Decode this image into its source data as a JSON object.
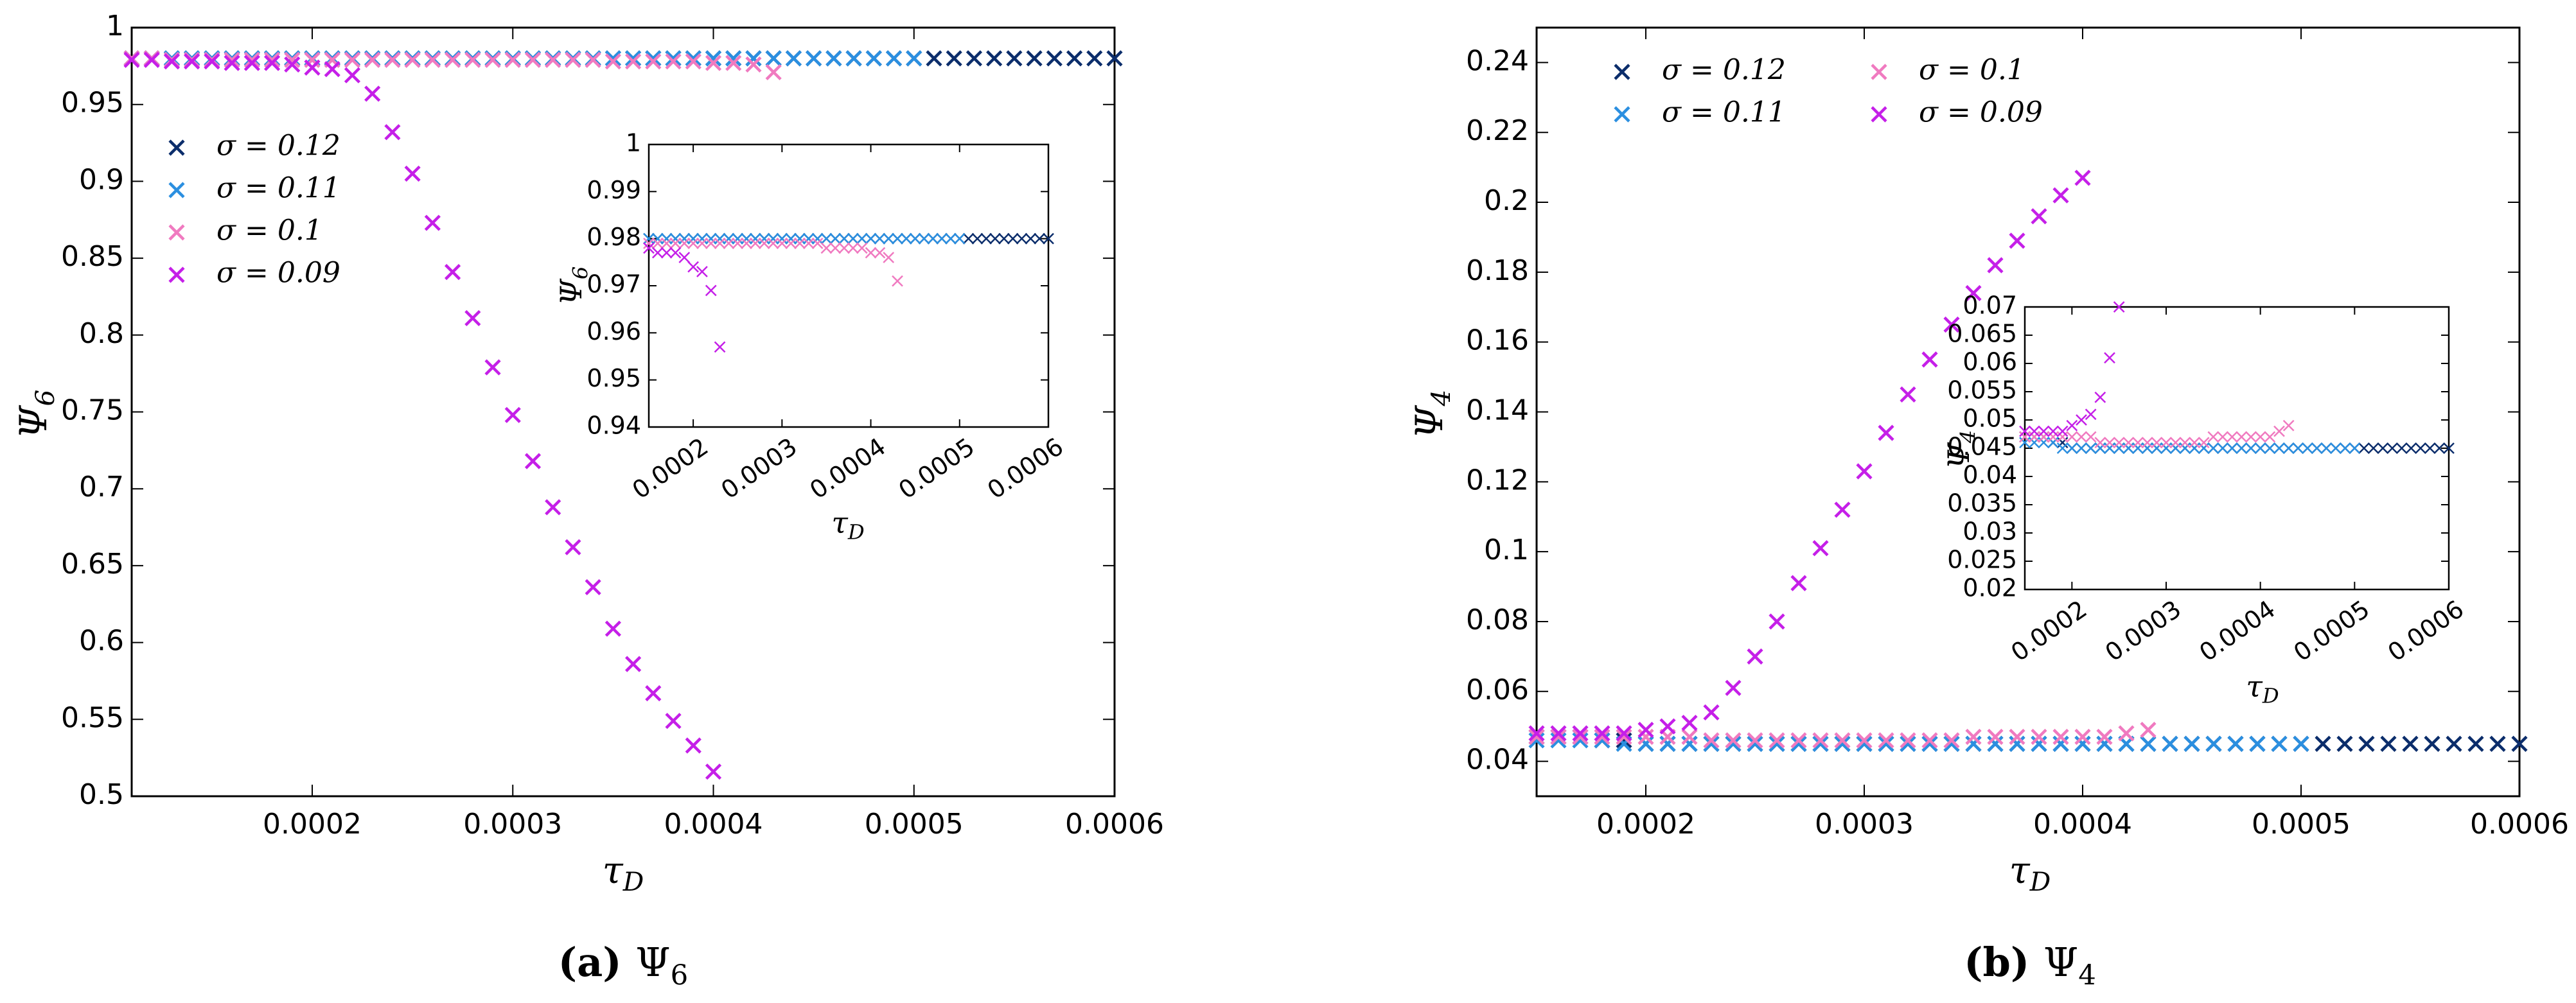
{
  "captions": [
    "(a) Ψ6",
    "(b) Ψ4"
  ],
  "chart_data": [
    {
      "type": "scatter",
      "panel": "a",
      "caption": "(a) Ψ6",
      "xlabel": "τD",
      "ylabel": "Ψ6",
      "xlim": [
        0.00011,
        0.0006
      ],
      "ylim": [
        0.5,
        1
      ],
      "xticks": [
        "0.0002",
        "0.0003",
        "0.0004",
        "0.0005",
        "0.0006"
      ],
      "yticks": [
        "0.5",
        "0.55",
        "0.6",
        "0.65",
        "0.7",
        "0.75",
        "0.8",
        "0.85",
        "0.9",
        "0.95",
        "1"
      ],
      "legend_position": "left",
      "grid": false,
      "series": [
        {
          "name": "σ = 0.12",
          "color": "#0b2d6b",
          "x_start": 0.00011,
          "x_step": 1e-05,
          "count": 50,
          "y_constant": 0.98
        },
        {
          "name": "σ = 0.11",
          "color": "#2b8fe0",
          "x_start": 0.00011,
          "x_step": 1e-05,
          "count": 40,
          "y_constant": 0.98
        },
        {
          "name": "σ = 0.1",
          "color": "#f07ac0",
          "x_start": 0.00011,
          "x_step": 1e-05,
          "count": 33,
          "y": [
            0.98,
            0.98,
            0.979,
            0.979,
            0.979,
            0.979,
            0.979,
            0.979,
            0.979,
            0.979,
            0.979,
            0.979,
            0.979,
            0.979,
            0.979,
            0.979,
            0.979,
            0.979,
            0.979,
            0.979,
            0.979,
            0.979,
            0.979,
            0.979,
            0.978,
            0.978,
            0.978,
            0.978,
            0.978,
            0.977,
            0.977,
            0.976,
            0.971
          ]
        },
        {
          "name": "σ = 0.09",
          "color": "#c51fe8",
          "x": [
            0.00011,
            0.00012,
            0.00013,
            0.00014,
            0.00015,
            0.00016,
            0.00017,
            0.00018,
            0.00019,
            0.0002,
            0.00021,
            0.00022,
            0.00023,
            0.00024,
            0.00025,
            0.00026,
            0.00027,
            0.00028,
            0.00029,
            0.0003,
            0.00031,
            0.00032,
            0.00033,
            0.00034,
            0.00035,
            0.00036,
            0.00037,
            0.00038,
            0.00039,
            0.0004
          ],
          "y": [
            0.979,
            0.979,
            0.978,
            0.978,
            0.978,
            0.977,
            0.977,
            0.977,
            0.976,
            0.974,
            0.973,
            0.969,
            0.957,
            0.932,
            0.905,
            0.873,
            0.841,
            0.811,
            0.779,
            0.748,
            0.718,
            0.688,
            0.662,
            0.636,
            0.609,
            0.586,
            0.567,
            0.549,
            0.533,
            0.516
          ]
        }
      ],
      "inset": {
        "xlabel": "τD",
        "ylabel": "Ψ6",
        "xlim": [
          0.00015,
          0.0006
        ],
        "ylim": [
          0.94,
          1
        ],
        "xticks": [
          "0.0002",
          "0.0003",
          "0.0004",
          "0.0005",
          "0.0006"
        ],
        "yticks": [
          "0.94",
          "0.95",
          "0.96",
          "0.97",
          "0.98",
          "0.99",
          "1"
        ]
      }
    },
    {
      "type": "scatter",
      "panel": "b",
      "caption": "(b) Ψ4",
      "xlabel": "τD",
      "ylabel": "Ψ4",
      "xlim": [
        0.00015,
        0.0006
      ],
      "ylim": [
        0.03,
        0.25
      ],
      "xticks": [
        "0.0002",
        "0.0003",
        "0.0004",
        "0.0005",
        "0.0006"
      ],
      "yticks": [
        "0.04",
        "0.06",
        "0.08",
        "0.1",
        "0.12",
        "0.14",
        "0.16",
        "0.18",
        "0.2",
        "0.22",
        "0.24"
      ],
      "legend_position": "top-left",
      "grid": false,
      "series": [
        {
          "name": "σ = 0.12",
          "color": "#0b2d6b",
          "x_start": 0.00015,
          "x_step": 1e-05,
          "count": 46,
          "y": [
            0.047,
            0.047,
            0.047,
            0.046,
            0.046,
            0.045,
            0.045,
            0.045,
            0.045,
            0.045,
            0.045,
            0.045,
            0.045,
            0.045,
            0.045,
            0.045,
            0.045,
            0.045,
            0.045,
            0.045,
            0.045,
            0.045,
            0.045,
            0.045,
            0.045,
            0.045,
            0.045,
            0.045,
            0.045,
            0.045,
            0.045,
            0.045,
            0.045,
            0.045,
            0.045,
            0.045,
            0.045,
            0.045,
            0.045,
            0.045,
            0.045,
            0.045,
            0.045,
            0.045,
            0.045,
            0.045
          ]
        },
        {
          "name": "σ = 0.11",
          "color": "#2b8fe0",
          "x_start": 0.00015,
          "x_step": 1e-05,
          "count": 36,
          "y": [
            0.046,
            0.046,
            0.046,
            0.046,
            0.045,
            0.045,
            0.045,
            0.045,
            0.045,
            0.045,
            0.045,
            0.045,
            0.045,
            0.045,
            0.045,
            0.045,
            0.045,
            0.045,
            0.045,
            0.045,
            0.045,
            0.045,
            0.045,
            0.045,
            0.045,
            0.045,
            0.045,
            0.045,
            0.045,
            0.045,
            0.045,
            0.045,
            0.045,
            0.045,
            0.045,
            0.045
          ]
        },
        {
          "name": "σ = 0.1",
          "color": "#f07ac0",
          "x_start": 0.00015,
          "x_step": 1e-05,
          "count": 29,
          "y": [
            0.047,
            0.047,
            0.047,
            0.047,
            0.047,
            0.047,
            0.047,
            0.047,
            0.046,
            0.046,
            0.046,
            0.046,
            0.046,
            0.046,
            0.046,
            0.046,
            0.046,
            0.046,
            0.046,
            0.046,
            0.047,
            0.047,
            0.047,
            0.047,
            0.047,
            0.047,
            0.047,
            0.048,
            0.049
          ]
        },
        {
          "name": "σ = 0.09",
          "color": "#c51fe8",
          "x_start": 0.00015,
          "x_step": 1e-05,
          "count": 26,
          "y": [
            0.048,
            0.048,
            0.048,
            0.048,
            0.048,
            0.049,
            0.05,
            0.051,
            0.054,
            0.061,
            0.07,
            0.08,
            0.091,
            0.101,
            0.112,
            0.123,
            0.134,
            0.145,
            0.155,
            0.165,
            0.174,
            0.182,
            0.189,
            0.196,
            0.202,
            0.207
          ]
        }
      ],
      "inset": {
        "xlabel": "τD",
        "ylabel": "Ψ4",
        "xlim": [
          0.00015,
          0.0006
        ],
        "ylim": [
          0.02,
          0.07
        ],
        "xticks": [
          "0.0002",
          "0.0003",
          "0.0004",
          "0.0005",
          "0.0006"
        ],
        "yticks": [
          "0.02",
          "0.025",
          "0.03",
          "0.035",
          "0.04",
          "0.045",
          "0.05",
          "0.055",
          "0.06",
          "0.065",
          "0.07"
        ]
      }
    }
  ]
}
